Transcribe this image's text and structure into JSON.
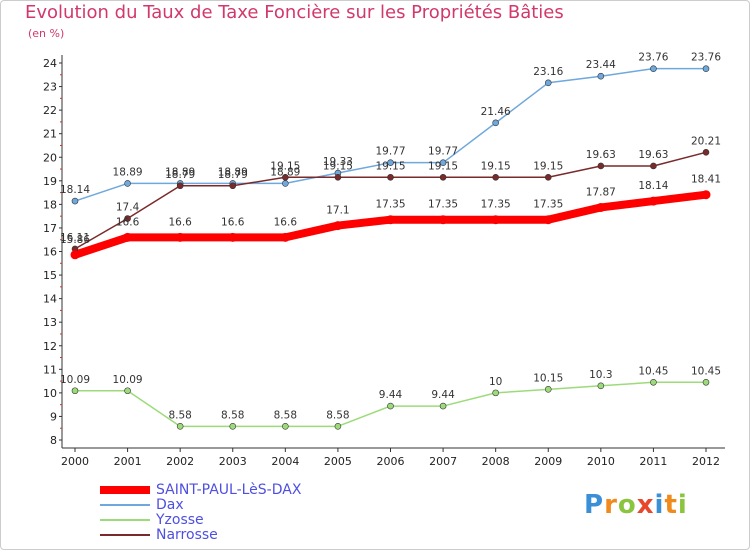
{
  "title": "Evolution du Taux de Taxe Foncière sur les Propriétés Bâties",
  "unit_label": "(en %)",
  "logo": {
    "text": "Proxiti",
    "letters": [
      {
        "ch": "P",
        "color": "#3a8fd6"
      },
      {
        "ch": "r",
        "color": "#f08a1c"
      },
      {
        "ch": "o",
        "color": "#8bc53f"
      },
      {
        "ch": "x",
        "color": "#e8462d"
      },
      {
        "ch": "i",
        "color": "#3a8fd6"
      },
      {
        "ch": "t",
        "color": "#f08a1c"
      },
      {
        "ch": "i",
        "color": "#8bc53f"
      }
    ]
  },
  "chart_data": {
    "type": "line",
    "title": "Evolution du Taux de Taxe Foncière sur les Propriétés Bâties",
    "ylabel": "(en %)",
    "xlabel": "",
    "x": [
      "2000",
      "2001",
      "2002",
      "2003",
      "2004",
      "2005",
      "2006",
      "2007",
      "2008",
      "2009",
      "2010",
      "2011",
      "2012"
    ],
    "ylim": [
      8,
      24
    ],
    "yticks": [
      8,
      9,
      10,
      11,
      12,
      13,
      14,
      15,
      16,
      17,
      18,
      19,
      20,
      21,
      22,
      23,
      24
    ],
    "grid": false,
    "legend_position": "bottom-left",
    "series": [
      {
        "name": "SAINT-PAUL-LèS-DAX",
        "color": "#ff0000",
        "width": 8,
        "values": [
          15.86,
          16.6,
          16.6,
          16.6,
          16.6,
          17.1,
          17.35,
          17.35,
          17.35,
          17.35,
          17.87,
          18.14,
          18.41
        ],
        "labels": [
          "15.86",
          "16.6",
          "16.6",
          "16.6",
          "16.6",
          "17.1",
          "17.35",
          "17.35",
          "17.35",
          "17.35",
          "17.87",
          "18.14",
          "18.41"
        ]
      },
      {
        "name": "Dax",
        "color": "#6fa8dc",
        "width": 1.5,
        "values": [
          18.14,
          18.89,
          18.89,
          18.89,
          18.89,
          19.33,
          19.77,
          19.77,
          21.46,
          23.16,
          23.44,
          23.76,
          23.76
        ],
        "labels": [
          "18.14",
          "18.89",
          "18.89",
          "18.89",
          "18.89",
          "19.33",
          "19.77",
          "19.77",
          "21.46",
          "23.16",
          "23.44",
          "23.76",
          "23.76"
        ]
      },
      {
        "name": "Yzosse",
        "color": "#9ddb7a",
        "width": 1.5,
        "values": [
          10.09,
          10.09,
          8.58,
          8.58,
          8.58,
          8.58,
          9.44,
          9.44,
          10,
          10.15,
          10.3,
          10.45,
          10.45
        ],
        "labels": [
          "10.09",
          "10.09",
          "8.58",
          "8.58",
          "8.58",
          "8.58",
          "9.44",
          "9.44",
          "10",
          "10.15",
          "10.3",
          "10.45",
          "10.45"
        ]
      },
      {
        "name": "Narrosse",
        "color": "#7a2a2a",
        "width": 1.5,
        "values": [
          16.11,
          17.4,
          18.79,
          18.79,
          19.15,
          19.15,
          19.15,
          19.15,
          19.15,
          19.15,
          19.63,
          19.63,
          20.21
        ],
        "labels": [
          "16.11",
          "17.4",
          "18.79",
          "18.79",
          "19.15",
          "19.15",
          "19.15",
          "19.15",
          "19.15",
          "19.15",
          "19.63",
          "19.63",
          "20.21"
        ]
      }
    ]
  }
}
